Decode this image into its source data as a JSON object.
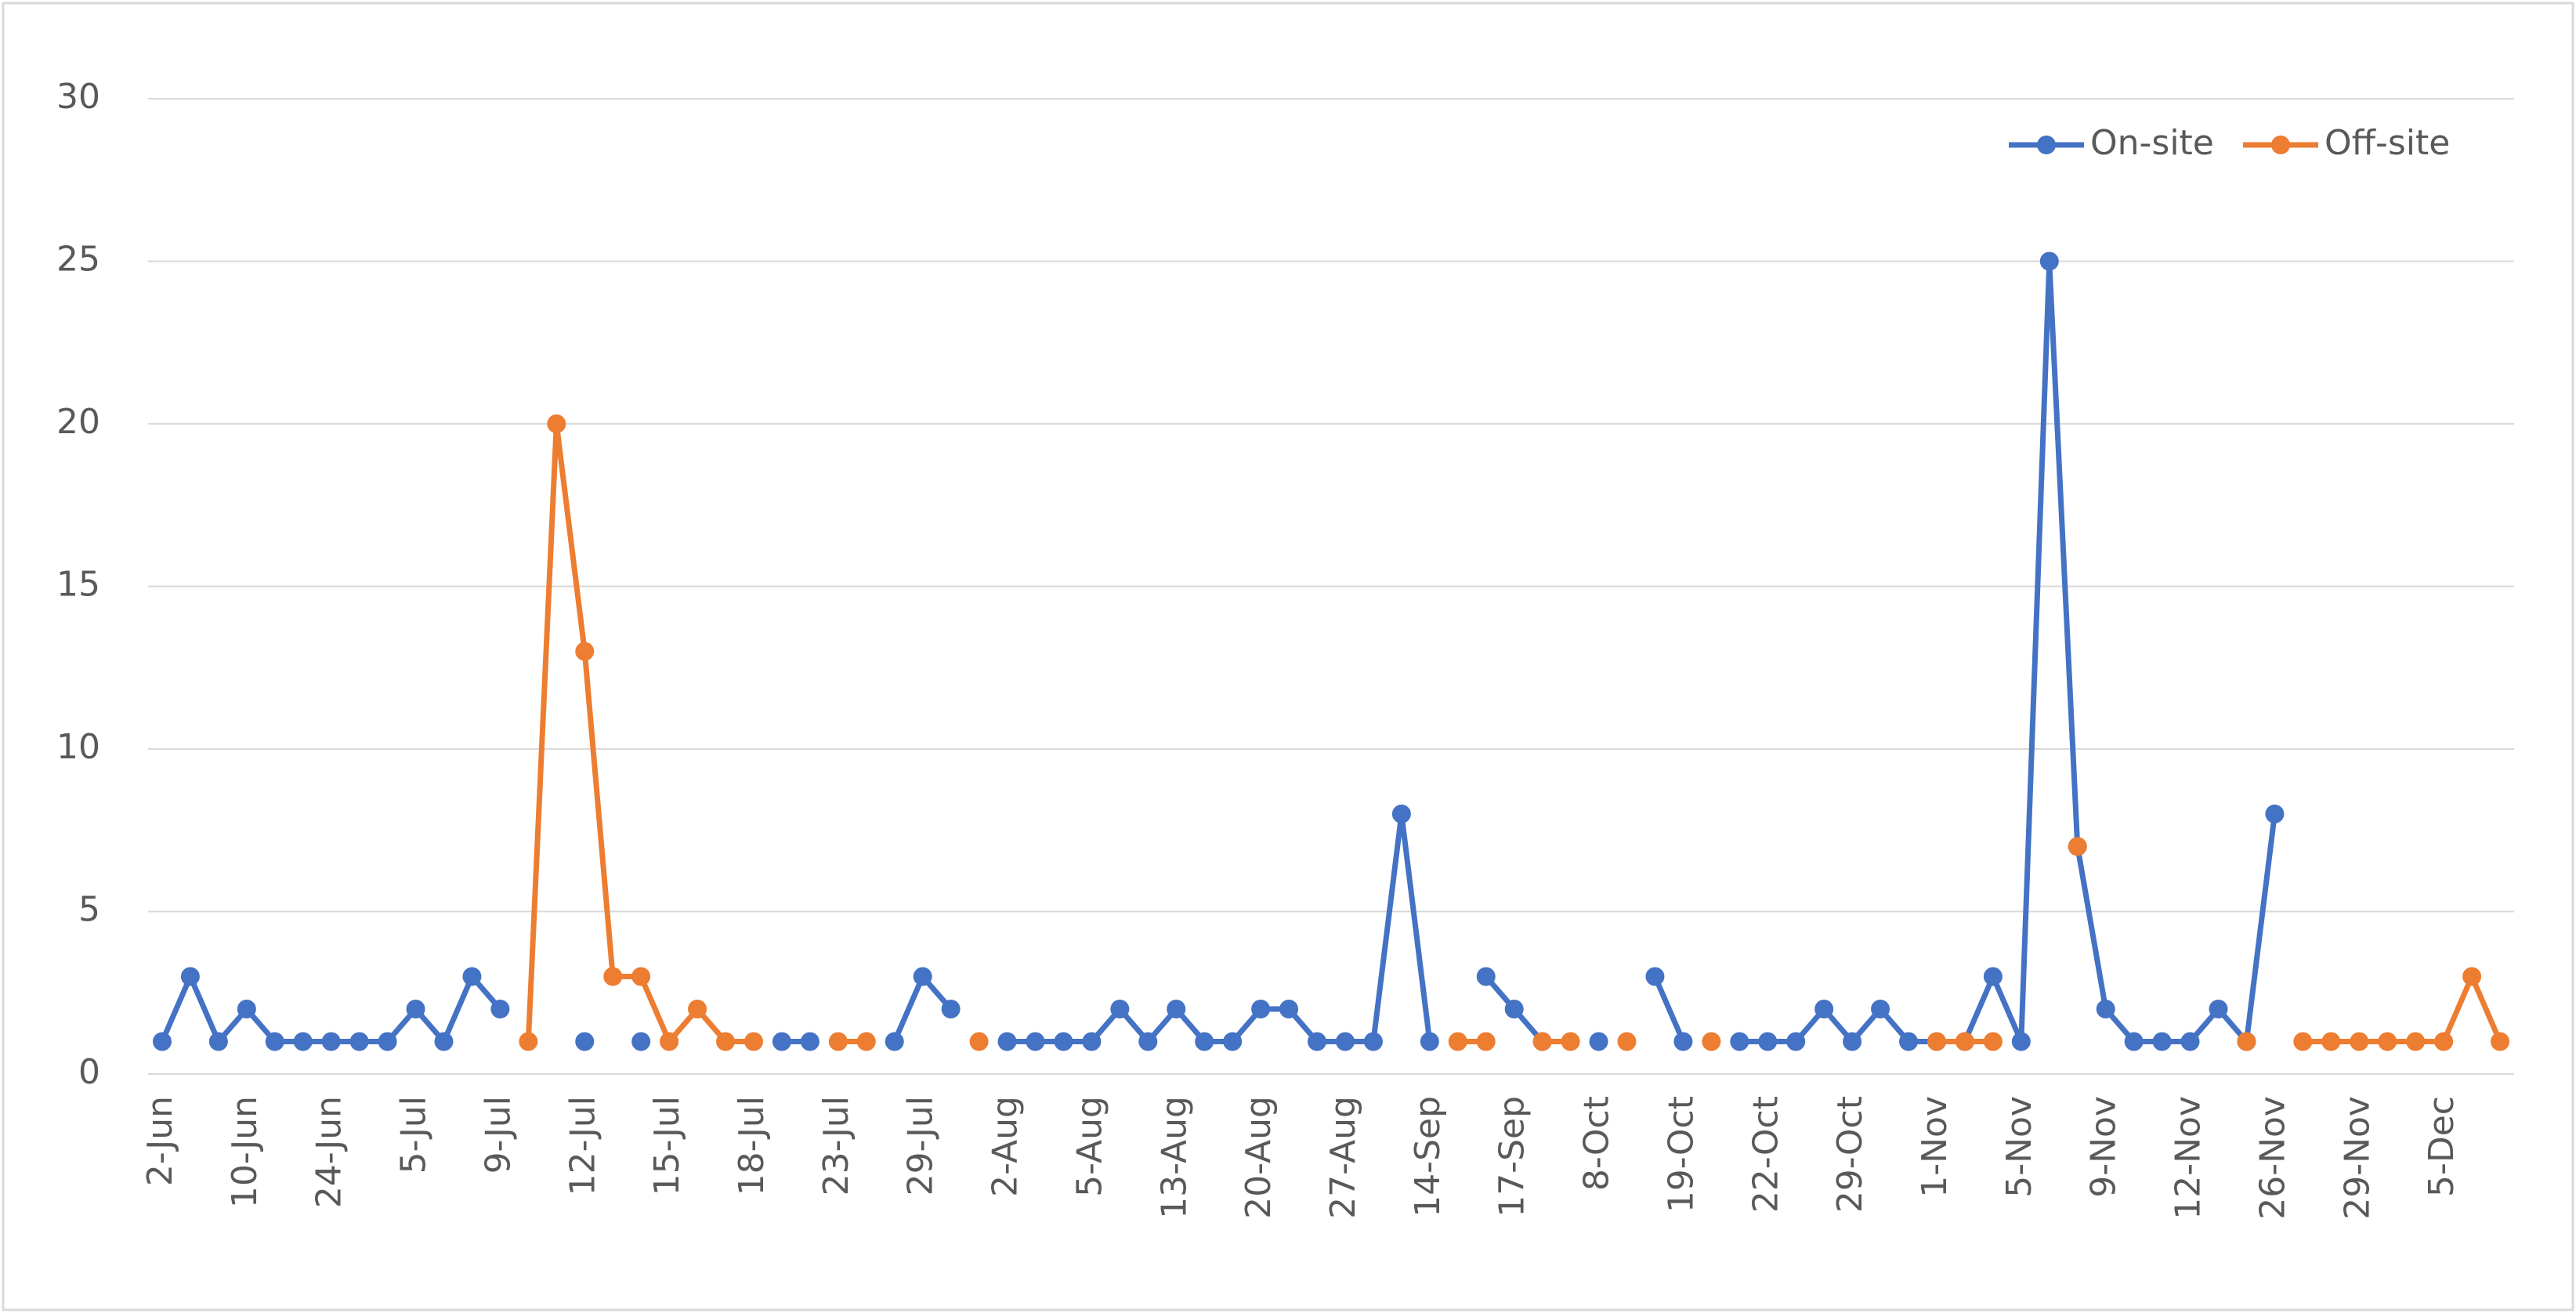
{
  "chart_data": {
    "type": "line",
    "categories": [
      "2-Jun",
      null,
      null,
      "10-Jun",
      null,
      null,
      "24-Jun",
      null,
      null,
      "5-Jul",
      null,
      null,
      "9-Jul",
      null,
      null,
      "12-Jul",
      null,
      null,
      "15-Jul",
      null,
      null,
      "18-Jul",
      null,
      null,
      "23-Jul",
      null,
      null,
      "29-Jul",
      null,
      null,
      "2-Aug",
      null,
      null,
      "5-Aug",
      null,
      null,
      "13-Aug",
      null,
      null,
      "20-Aug",
      null,
      null,
      "27-Aug",
      null,
      null,
      "14-Sep",
      null,
      null,
      "17-Sep",
      null,
      null,
      "8-Oct",
      null,
      null,
      "19-Oct",
      null,
      null,
      "22-Oct",
      null,
      null,
      "29-Oct",
      null,
      null,
      "1-Nov",
      null,
      null,
      "5-Nov",
      null,
      null,
      "9-Nov",
      null,
      null,
      "12-Nov",
      null,
      null,
      "26-Nov",
      null,
      null,
      "29-Nov",
      null,
      null,
      "5-Dec",
      null,
      null
    ],
    "series": [
      {
        "name": "On-site",
        "color": "#4472c4",
        "values": [
          1,
          3,
          1,
          2,
          1,
          1,
          1,
          1,
          1,
          2,
          1,
          3,
          2,
          null,
          null,
          1,
          null,
          1,
          null,
          null,
          null,
          null,
          1,
          1,
          null,
          null,
          1,
          3,
          2,
          null,
          1,
          1,
          1,
          1,
          2,
          1,
          2,
          1,
          1,
          2,
          2,
          1,
          1,
          1,
          8,
          1,
          null,
          3,
          2,
          1,
          null,
          1,
          null,
          3,
          1,
          null,
          1,
          1,
          1,
          2,
          1,
          2,
          1,
          1,
          1,
          3,
          1,
          25,
          7,
          2,
          1,
          1,
          1,
          2,
          1,
          8,
          null,
          null,
          null,
          null,
          null,
          null,
          null,
          null
        ]
      },
      {
        "name": "Off-site",
        "color": "#ed7d31",
        "values": [
          null,
          null,
          null,
          null,
          null,
          null,
          null,
          null,
          null,
          null,
          null,
          null,
          null,
          1,
          20,
          13,
          3,
          3,
          1,
          2,
          1,
          1,
          null,
          null,
          1,
          1,
          null,
          null,
          null,
          1,
          null,
          null,
          null,
          null,
          null,
          null,
          null,
          null,
          null,
          null,
          null,
          null,
          null,
          null,
          null,
          null,
          1,
          1,
          null,
          1,
          1,
          null,
          1,
          null,
          null,
          1,
          null,
          null,
          null,
          null,
          null,
          null,
          null,
          1,
          1,
          1,
          null,
          null,
          7,
          null,
          null,
          null,
          null,
          null,
          1,
          null,
          1,
          1,
          1,
          1,
          1,
          1,
          3,
          1
        ]
      }
    ],
    "ylim": [
      0,
      30
    ],
    "yticks": [
      0,
      5,
      10,
      15,
      20,
      25,
      30
    ],
    "grid": true,
    "legend": "upper right"
  }
}
